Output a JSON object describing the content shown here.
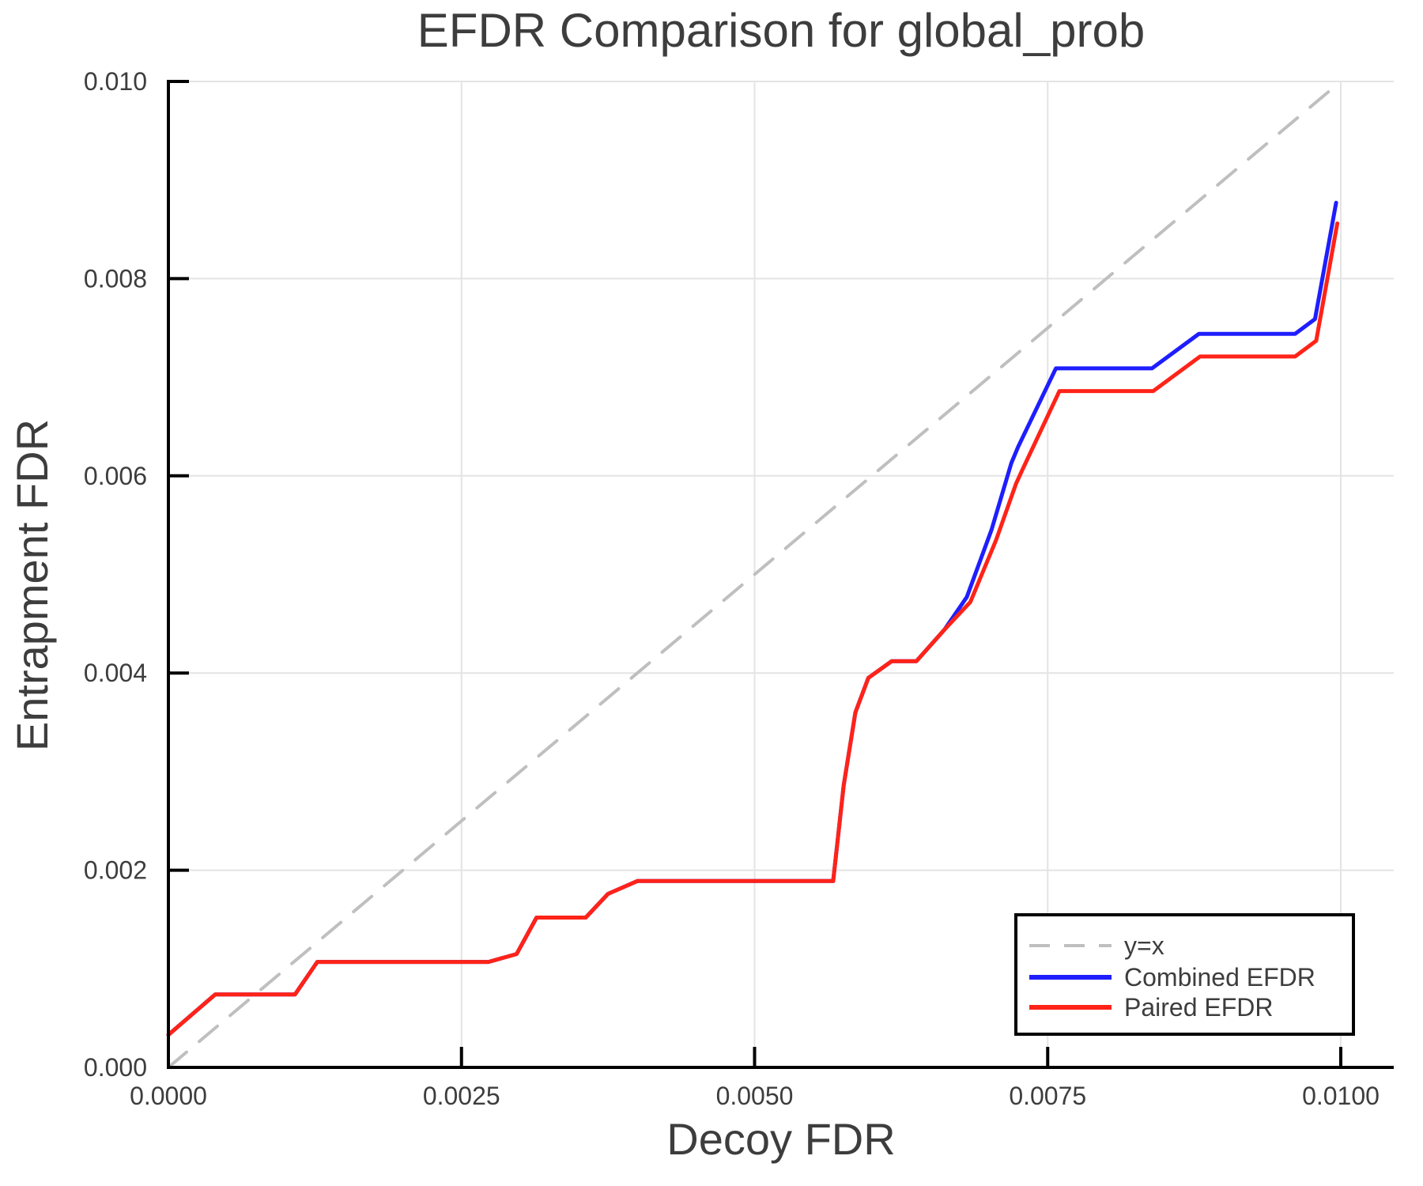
{
  "figure": {
    "title": "EFDR Comparison for global_prob",
    "x_label": "Decoy FDR",
    "y_label": "Entrapment FDR"
  },
  "chart_data": {
    "type": "line",
    "title": "EFDR Comparison for global_prob",
    "xlabel": "Decoy FDR",
    "ylabel": "Entrapment FDR",
    "xlim": [
      0.0,
      0.01
    ],
    "ylim": [
      0.0,
      0.01
    ],
    "grid": true,
    "legend_position": "bottom-right",
    "x_ticks": {
      "values": [
        0.0,
        0.0025,
        0.005,
        0.0075,
        0.01
      ],
      "labels": [
        "0.0000",
        "0.0025",
        "0.0050",
        "0.0075",
        "0.0100"
      ]
    },
    "y_ticks": {
      "values": [
        0.0,
        0.002,
        0.004,
        0.006,
        0.008,
        0.01
      ],
      "labels": [
        "0.000",
        "0.002",
        "0.004",
        "0.006",
        "0.008",
        "0.010"
      ]
    },
    "colors": {
      "identity": "#bfbfbf",
      "combined": "#1e1eff",
      "paired": "#ff2318",
      "grid": "#e4e4e4",
      "axis": "#000000",
      "text": "#3d3d3d"
    },
    "series": [
      {
        "name": "y=x",
        "style": "dashed",
        "color": "#bfbfbf",
        "width": 4,
        "points": [
          [
            0.0,
            0.0
          ],
          [
            0.01,
            0.01
          ]
        ]
      },
      {
        "name": "Combined EFDR",
        "style": "solid",
        "color": "#1e1eff",
        "width": 5,
        "points": [
          [
            0.0,
            0.00033
          ],
          [
            0.0004,
            0.00074
          ],
          [
            0.00108,
            0.00074
          ],
          [
            0.00127,
            0.00107
          ],
          [
            0.00273,
            0.00107
          ],
          [
            0.00297,
            0.00115
          ],
          [
            0.00314,
            0.00152
          ],
          [
            0.00356,
            0.00152
          ],
          [
            0.00375,
            0.00176
          ],
          [
            0.004,
            0.00189
          ],
          [
            0.00567,
            0.00189
          ],
          [
            0.00576,
            0.00286
          ],
          [
            0.00586,
            0.0036
          ],
          [
            0.00597,
            0.00395
          ],
          [
            0.00617,
            0.00412
          ],
          [
            0.00638,
            0.00412
          ],
          [
            0.00662,
            0.00444
          ],
          [
            0.00681,
            0.00477
          ],
          [
            0.00702,
            0.00545
          ],
          [
            0.00719,
            0.00613
          ],
          [
            0.00725,
            0.0063
          ],
          [
            0.00757,
            0.00709
          ],
          [
            0.00839,
            0.00709
          ],
          [
            0.00879,
            0.00744
          ],
          [
            0.00961,
            0.00744
          ],
          [
            0.00978,
            0.00759
          ],
          [
            0.00996,
            0.00877
          ]
        ]
      },
      {
        "name": "Paired EFDR",
        "style": "solid",
        "color": "#ff2318",
        "width": 5,
        "points": [
          [
            0.0,
            0.00033
          ],
          [
            0.0004,
            0.00074
          ],
          [
            0.00108,
            0.00074
          ],
          [
            0.00127,
            0.00107
          ],
          [
            0.00273,
            0.00107
          ],
          [
            0.00297,
            0.00115
          ],
          [
            0.00314,
            0.00152
          ],
          [
            0.00356,
            0.00152
          ],
          [
            0.00375,
            0.00176
          ],
          [
            0.004,
            0.00189
          ],
          [
            0.00567,
            0.00189
          ],
          [
            0.00576,
            0.00286
          ],
          [
            0.00586,
            0.0036
          ],
          [
            0.00597,
            0.00395
          ],
          [
            0.00617,
            0.00412
          ],
          [
            0.00638,
            0.00412
          ],
          [
            0.00662,
            0.00444
          ],
          [
            0.00684,
            0.00472
          ],
          [
            0.00706,
            0.00535
          ],
          [
            0.00723,
            0.00592
          ],
          [
            0.00728,
            0.00605
          ],
          [
            0.0076,
            0.00686
          ],
          [
            0.0084,
            0.00686
          ],
          [
            0.0088,
            0.00721
          ],
          [
            0.00961,
            0.00721
          ],
          [
            0.00979,
            0.00737
          ],
          [
            0.00997,
            0.00856
          ]
        ]
      }
    ]
  }
}
